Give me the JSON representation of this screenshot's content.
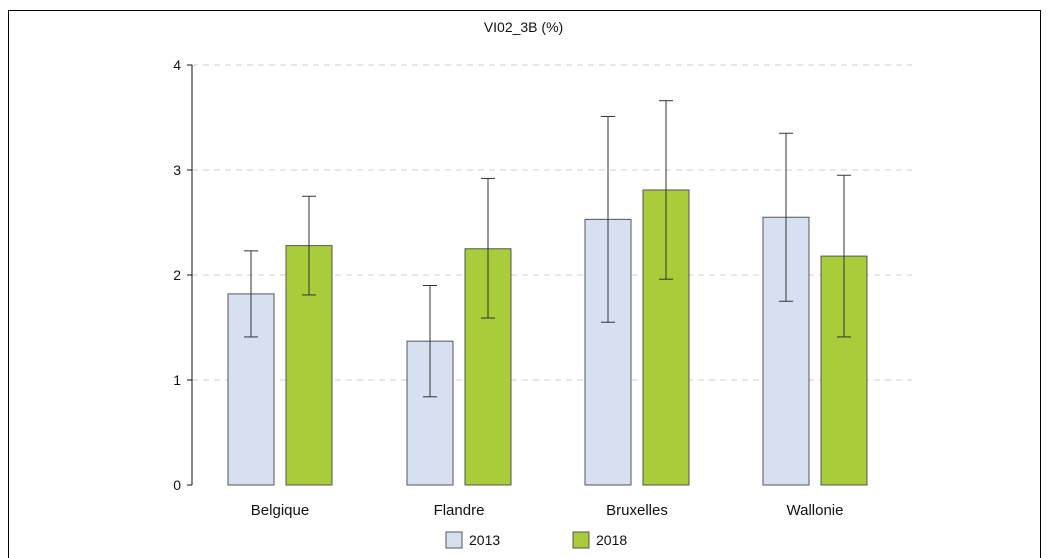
{
  "chart_data": {
    "type": "bar",
    "title": "VI02_3B (%)",
    "categories": [
      "Belgique",
      "Flandre",
      "Bruxelles",
      "Wallonie"
    ],
    "ylim": [
      0,
      4
    ],
    "yticks": [
      0,
      1,
      2,
      3,
      4
    ],
    "grid": true,
    "legend_position": "bottom",
    "series": [
      {
        "name": "2013",
        "color": "#d6e0f0",
        "values": [
          1.82,
          1.37,
          2.53,
          2.55
        ],
        "ci_low": [
          1.41,
          0.84,
          1.55,
          1.75
        ],
        "ci_high": [
          2.23,
          1.9,
          3.51,
          3.35
        ]
      },
      {
        "name": "2018",
        "color": "#a8cc3a",
        "values": [
          2.28,
          2.25,
          2.81,
          2.18
        ],
        "ci_low": [
          1.81,
          1.59,
          1.96,
          1.41
        ],
        "ci_high": [
          2.75,
          2.92,
          3.66,
          2.95
        ]
      }
    ]
  }
}
